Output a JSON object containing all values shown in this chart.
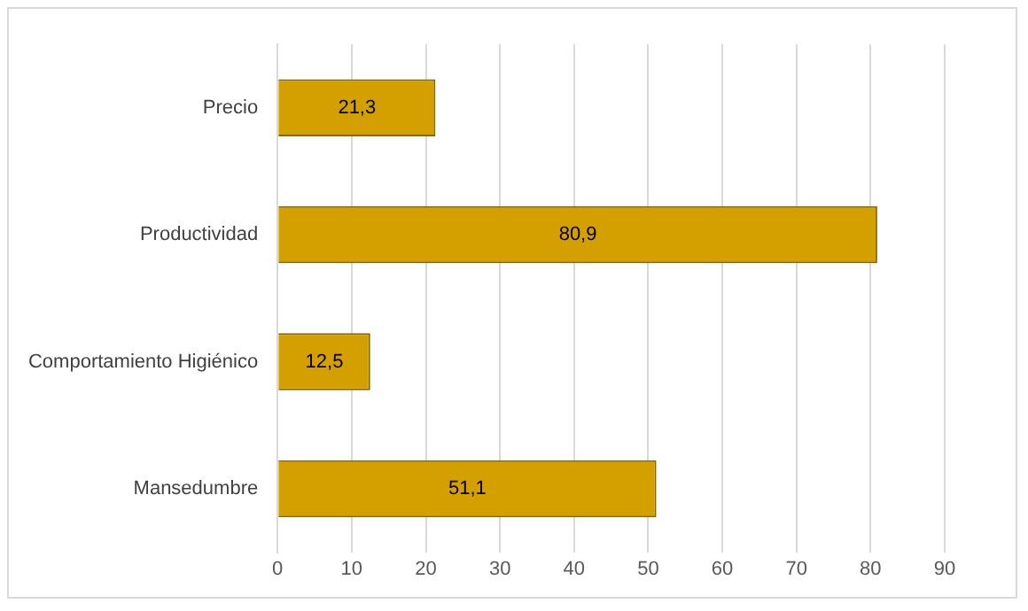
{
  "chart_data": {
    "type": "bar",
    "orientation": "horizontal",
    "categories": [
      "Precio",
      "Productividad",
      "Comportamiento Higiénico",
      "Mansedumbre"
    ],
    "values": [
      21.3,
      80.9,
      12.5,
      51.1
    ],
    "value_labels": [
      "21,3",
      "80,9",
      "12,5",
      "51,1"
    ],
    "color": "#d4a000",
    "xlim": [
      0,
      90
    ],
    "xticks": [
      0,
      10,
      20,
      30,
      40,
      50,
      60,
      70,
      80,
      90
    ],
    "grid": "x",
    "legend": false
  }
}
